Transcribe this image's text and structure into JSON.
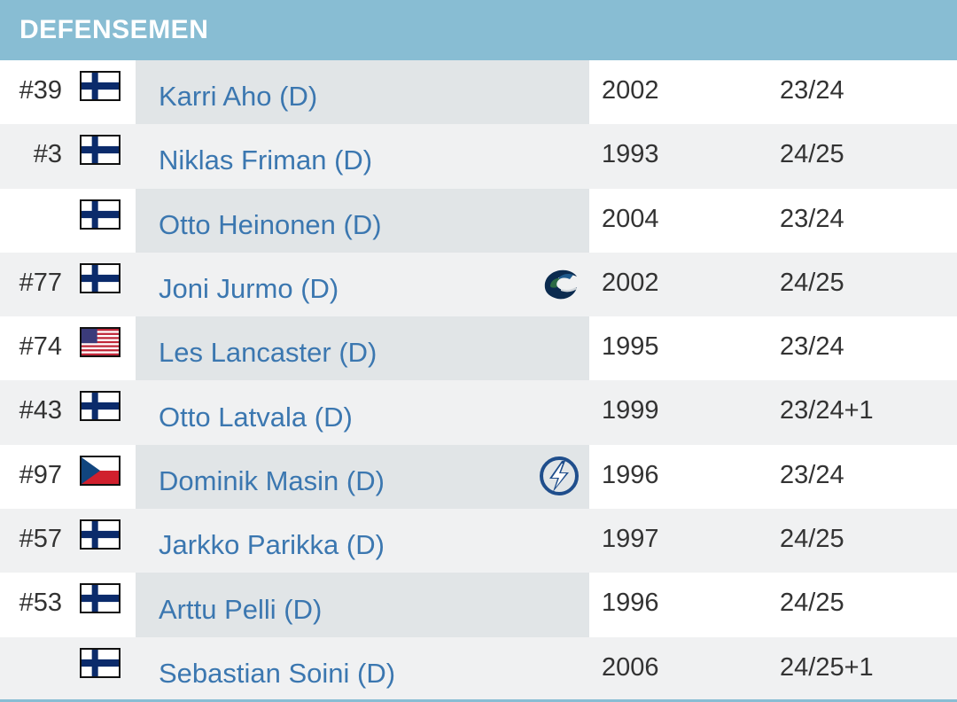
{
  "section": {
    "title": "DEFENSEMEN"
  },
  "colors": {
    "header_bg": "#88bdd3",
    "link": "#3b77b0",
    "row_alt": "#f0f1f2",
    "name_cell": "#e1e5e7"
  },
  "players": [
    {
      "number": "#39",
      "flag": "finland-flag-icon",
      "name": "Karri Aho (D)",
      "team_logo": "",
      "year": "2002",
      "contract": "23/24"
    },
    {
      "number": "#3",
      "flag": "finland-flag-icon",
      "name": "Niklas Friman (D)",
      "team_logo": "",
      "year": "1993",
      "contract": "24/25"
    },
    {
      "number": "",
      "flag": "finland-flag-icon",
      "name": "Otto Heinonen (D)",
      "team_logo": "",
      "year": "2004",
      "contract": "23/24"
    },
    {
      "number": "#77",
      "flag": "finland-flag-icon",
      "name": "Joni Jurmo (D)",
      "team_logo": "canucks-logo-icon",
      "year": "2002",
      "contract": "24/25"
    },
    {
      "number": "#74",
      "flag": "usa-flag-icon",
      "name": "Les Lancaster (D)",
      "team_logo": "",
      "year": "1995",
      "contract": "23/24"
    },
    {
      "number": "#43",
      "flag": "finland-flag-icon",
      "name": "Otto Latvala (D)",
      "team_logo": "",
      "year": "1999",
      "contract": "23/24+1"
    },
    {
      "number": "#97",
      "flag": "czech-flag-icon",
      "name": "Dominik Masin (D)",
      "team_logo": "lightning-logo-icon",
      "year": "1996",
      "contract": "23/24"
    },
    {
      "number": "#57",
      "flag": "finland-flag-icon",
      "name": "Jarkko Parikka (D)",
      "team_logo": "",
      "year": "1997",
      "contract": "24/25"
    },
    {
      "number": "#53",
      "flag": "finland-flag-icon",
      "name": "Arttu Pelli (D)",
      "team_logo": "",
      "year": "1996",
      "contract": "24/25"
    },
    {
      "number": "",
      "flag": "finland-flag-icon",
      "name": "Sebastian Soini (D)",
      "team_logo": "",
      "year": "2006",
      "contract": "24/25+1"
    }
  ]
}
